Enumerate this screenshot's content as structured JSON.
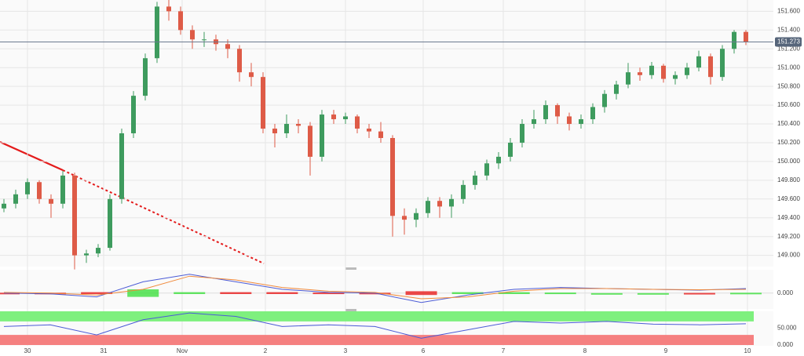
{
  "chart_data": {
    "type": "candlestick",
    "ylim": [
      148.88,
      151.72
    ],
    "yticks": [
      {
        "value": 149.0,
        "label": "149.000"
      },
      {
        "value": 149.2,
        "label": "149.200"
      },
      {
        "value": 149.4,
        "label": "149.400"
      },
      {
        "value": 149.6,
        "label": "149.600"
      },
      {
        "value": 149.8,
        "label": "149.800"
      },
      {
        "value": 150.0,
        "label": "150.000"
      },
      {
        "value": 150.2,
        "label": "150.200"
      },
      {
        "value": 150.4,
        "label": "150.400"
      },
      {
        "value": 150.6,
        "label": "150.600"
      },
      {
        "value": 150.8,
        "label": "150.800"
      },
      {
        "value": 151.0,
        "label": "151.000"
      },
      {
        "value": 151.2,
        "label": "151.200"
      },
      {
        "value": 151.4,
        "label": "151.400"
      },
      {
        "value": 151.6,
        "label": "151.600"
      }
    ],
    "last_price": {
      "value": 151.273,
      "label": "151.273"
    },
    "x_labels": [
      "30",
      "31",
      "Nov",
      "2",
      "3",
      "6",
      "7",
      "8",
      "9",
      "10"
    ],
    "up_color": "#3e9b5e",
    "down_color": "#de5b47",
    "ohlc": [
      [
        149.5,
        149.6,
        149.46,
        149.55
      ],
      [
        149.55,
        149.7,
        149.5,
        149.65
      ],
      [
        149.65,
        149.82,
        149.6,
        149.78
      ],
      [
        149.78,
        149.8,
        149.55,
        149.6
      ],
      [
        149.6,
        149.65,
        149.4,
        149.55
      ],
      [
        149.55,
        149.9,
        149.5,
        149.85
      ],
      [
        149.85,
        149.88,
        148.85,
        149.0
      ],
      [
        149.0,
        149.06,
        148.92,
        149.02
      ],
      [
        149.02,
        149.12,
        148.98,
        149.08
      ],
      [
        149.08,
        149.65,
        149.05,
        149.6
      ],
      [
        149.6,
        150.35,
        149.55,
        150.3
      ],
      [
        150.3,
        150.75,
        150.25,
        150.7
      ],
      [
        150.7,
        151.15,
        150.65,
        151.1
      ],
      [
        151.1,
        151.7,
        151.05,
        151.65
      ],
      [
        151.65,
        151.72,
        151.5,
        151.6
      ],
      [
        151.6,
        151.65,
        151.35,
        151.4
      ],
      [
        151.4,
        151.45,
        151.2,
        151.3
      ],
      [
        151.3,
        151.38,
        151.22,
        151.3
      ],
      [
        151.3,
        151.35,
        151.18,
        151.25
      ],
      [
        151.25,
        151.3,
        151.1,
        151.2
      ],
      [
        151.2,
        151.24,
        150.85,
        150.95
      ],
      [
        150.95,
        151.05,
        150.8,
        150.9
      ],
      [
        150.9,
        150.95,
        150.3,
        150.35
      ],
      [
        150.35,
        150.4,
        150.15,
        150.3
      ],
      [
        150.3,
        150.5,
        150.25,
        150.4
      ],
      [
        150.4,
        150.45,
        150.3,
        150.38
      ],
      [
        150.38,
        150.42,
        149.85,
        150.05
      ],
      [
        150.05,
        150.55,
        150.0,
        150.5
      ],
      [
        150.5,
        150.55,
        150.4,
        150.45
      ],
      [
        150.45,
        150.52,
        150.4,
        150.48
      ],
      [
        150.48,
        150.5,
        150.3,
        150.35
      ],
      [
        150.35,
        150.4,
        150.25,
        150.32
      ],
      [
        150.32,
        150.42,
        150.2,
        150.25
      ],
      [
        150.25,
        150.28,
        149.2,
        149.42
      ],
      [
        149.42,
        149.5,
        149.22,
        149.38
      ],
      [
        149.38,
        149.5,
        149.3,
        149.45
      ],
      [
        149.45,
        149.62,
        149.4,
        149.58
      ],
      [
        149.58,
        149.62,
        149.4,
        149.52
      ],
      [
        149.52,
        149.65,
        149.4,
        149.6
      ],
      [
        149.6,
        149.8,
        149.55,
        149.75
      ],
      [
        149.75,
        149.9,
        149.7,
        149.85
      ],
      [
        149.85,
        150.02,
        149.8,
        149.98
      ],
      [
        149.98,
        150.1,
        149.92,
        150.05
      ],
      [
        150.05,
        150.25,
        150.0,
        150.2
      ],
      [
        150.2,
        150.45,
        150.15,
        150.4
      ],
      [
        150.4,
        150.55,
        150.35,
        150.45
      ],
      [
        150.45,
        150.65,
        150.4,
        150.6
      ],
      [
        150.6,
        150.62,
        150.4,
        150.48
      ],
      [
        150.48,
        150.52,
        150.33,
        150.4
      ],
      [
        150.4,
        150.5,
        150.35,
        150.45
      ],
      [
        150.45,
        150.62,
        150.4,
        150.58
      ],
      [
        150.58,
        150.76,
        150.52,
        150.72
      ],
      [
        150.72,
        150.86,
        150.66,
        150.82
      ],
      [
        150.82,
        151.05,
        150.78,
        150.95
      ],
      [
        150.95,
        151.0,
        150.86,
        150.92
      ],
      [
        150.92,
        151.06,
        150.88,
        151.02
      ],
      [
        151.02,
        151.04,
        150.84,
        150.88
      ],
      [
        150.88,
        150.96,
        150.82,
        150.92
      ],
      [
        150.92,
        151.05,
        150.88,
        151.0
      ],
      [
        151.0,
        151.18,
        150.96,
        151.12
      ],
      [
        151.12,
        151.15,
        150.82,
        150.9
      ],
      [
        150.9,
        151.24,
        150.86,
        151.2
      ],
      [
        151.2,
        151.4,
        151.15,
        151.38
      ],
      [
        151.38,
        151.4,
        151.24,
        151.273
      ]
    ],
    "macd": {
      "ylim": [
        -0.4,
        0.6
      ],
      "yticks": [
        {
          "value": 0,
          "label": "0.000"
        }
      ],
      "macd": [
        0.0,
        -0.02,
        -0.1,
        0.3,
        0.5,
        0.3,
        0.1,
        0.02,
        0.0,
        -0.25,
        -0.05,
        0.1,
        0.15,
        0.12,
        0.1,
        0.08,
        0.12
      ],
      "signal": [
        0.02,
        0.0,
        -0.05,
        0.1,
        0.45,
        0.35,
        0.15,
        0.05,
        0.02,
        -0.15,
        -0.1,
        0.05,
        0.12,
        0.12,
        0.1,
        0.09,
        0.1
      ]
    },
    "rsi": {
      "ylim": [
        0,
        100
      ],
      "yticks": [
        {
          "value": 50,
          "label": "50.000"
        },
        {
          "value": 0,
          "label": "0.000"
        }
      ],
      "bands": [
        30,
        70
      ],
      "values": [
        55,
        60,
        30,
        75,
        95,
        85,
        55,
        60,
        55,
        20,
        45,
        70,
        65,
        70,
        62,
        60,
        63
      ]
    }
  }
}
